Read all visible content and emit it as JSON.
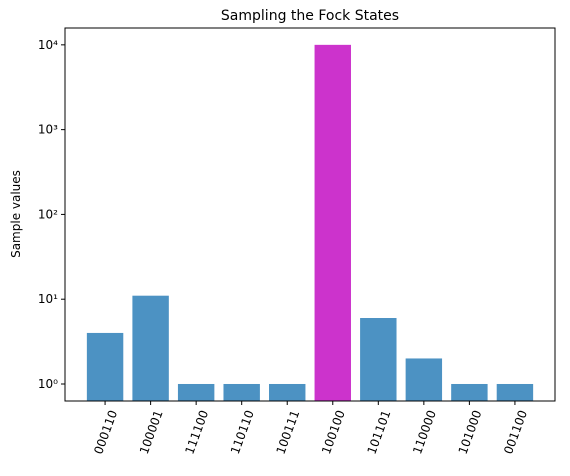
{
  "chart_data": {
    "type": "bar",
    "title": "Sampling the Fock States",
    "y_label": "Sample values",
    "categories": [
      "000110",
      "100001",
      "111100",
      "110110",
      "100111",
      "100100",
      "101101",
      "110000",
      "101000",
      "001100"
    ],
    "values": [
      4,
      11,
      1,
      1,
      1,
      10000,
      6,
      2,
      1,
      1
    ],
    "colors": [
      "#4c92c3",
      "#4c92c3",
      "#4c92c3",
      "#4c92c3",
      "#4c92c3",
      "#cc33cc",
      "#4c92c3",
      "#4c92c3",
      "#4c92c3",
      "#4c92c3"
    ],
    "log_scale": true,
    "ylim": [
      0.63,
      15800
    ],
    "yticks": [
      {
        "value": 1,
        "label": "10⁰"
      },
      {
        "value": 10,
        "label": "10¹"
      },
      {
        "value": 100,
        "label": "10²"
      },
      {
        "value": 1000,
        "label": "10³"
      },
      {
        "value": 10000,
        "label": "10⁴"
      }
    ],
    "grid": false
  }
}
